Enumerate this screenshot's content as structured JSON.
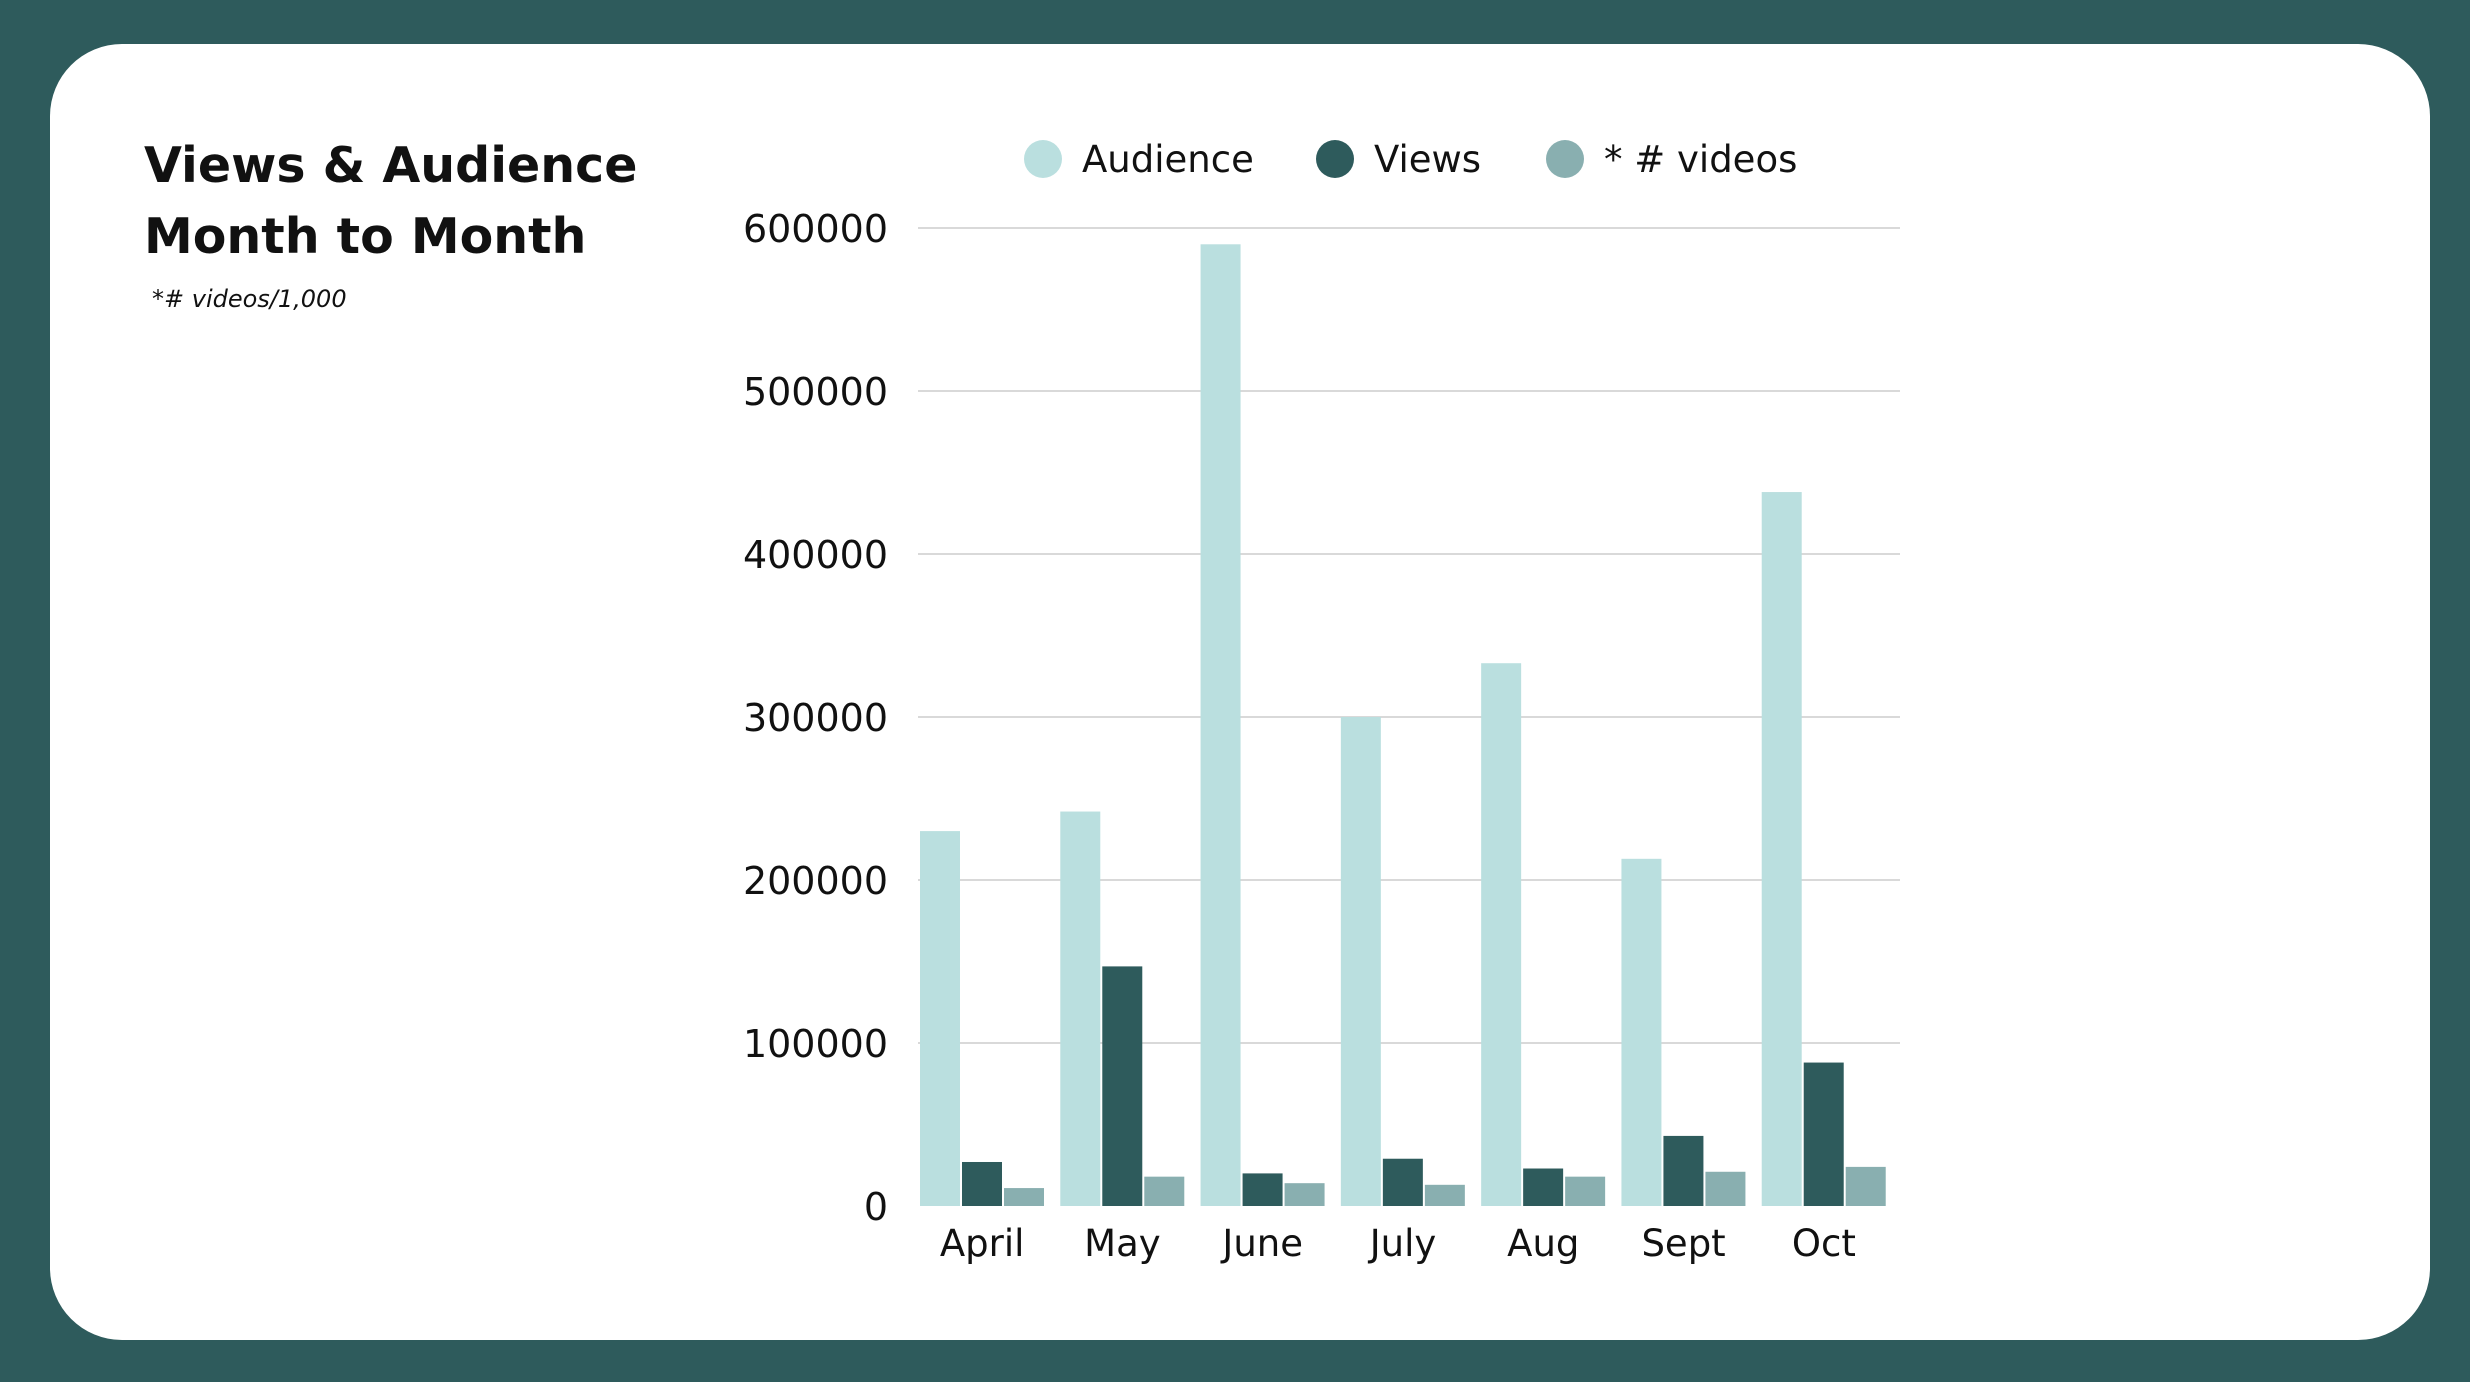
{
  "page": {
    "title_line1": "Views & Audience",
    "title_line2": "Month to Month",
    "note": "*# videos/1,000"
  },
  "colors": {
    "background": "#2e5b5c",
    "card": "#ffffff",
    "audience": "#badfdf",
    "views": "#2e5b5c",
    "videos": "#89afb0",
    "grid": "#d9d9d9"
  },
  "chart_data": {
    "type": "bar",
    "categories": [
      "April",
      "May",
      "June",
      "July",
      "Aug",
      "Sept",
      "Oct"
    ],
    "series": [
      {
        "name": "Audience",
        "values": [
          230000,
          242000,
          590000,
          300000,
          333000,
          213000,
          438000
        ]
      },
      {
        "name": "Views",
        "values": [
          27000,
          147000,
          20000,
          29000,
          23000,
          43000,
          88000
        ]
      },
      {
        "name": "* # videos",
        "values": [
          11000,
          18000,
          14000,
          13000,
          18000,
          21000,
          24000
        ]
      }
    ],
    "yticks": [
      "0",
      "100000",
      "200000",
      "300000",
      "400000",
      "500000",
      "600000"
    ],
    "ylim": [
      0,
      600000
    ],
    "legend_position": "top",
    "grid": true
  }
}
